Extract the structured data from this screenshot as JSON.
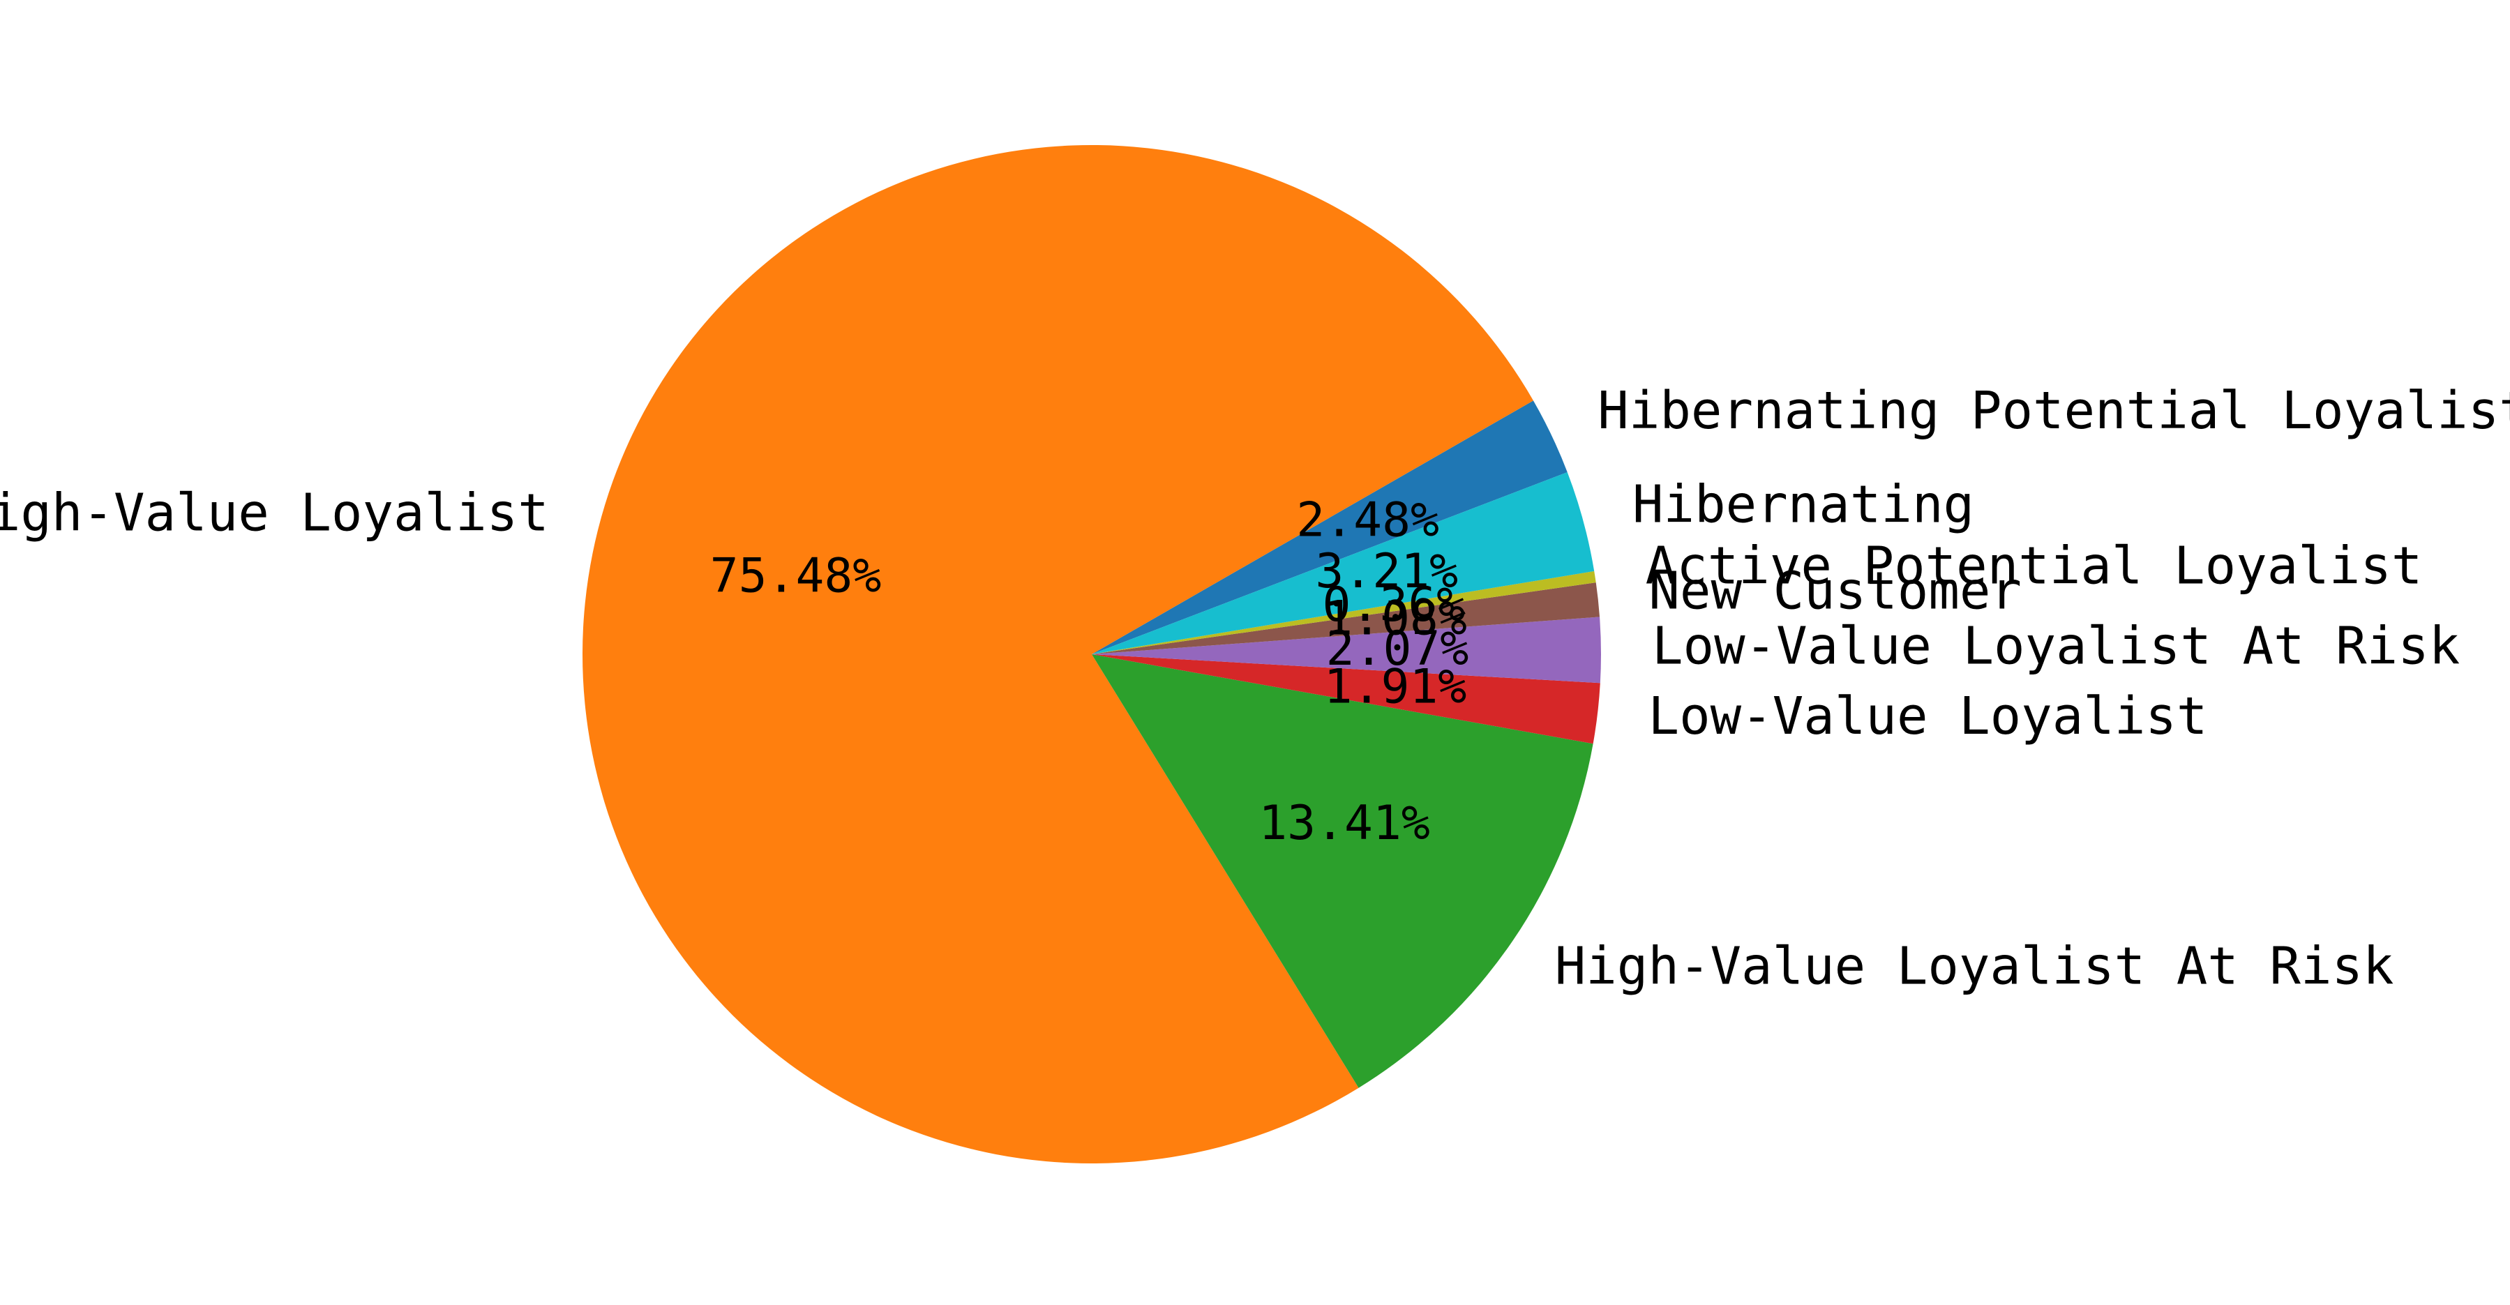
{
  "chart_data": {
    "type": "pie",
    "title": "",
    "start_angle": 20.95,
    "direction": "counterclockwise",
    "slices": [
      {
        "label": "Hibernating Potential Loyalist",
        "value": 2.48,
        "pct_label": "2.48%",
        "color": "#1f77b4"
      },
      {
        "label": "High-Value Loyalist",
        "value": 75.48,
        "pct_label": "75.48%",
        "color": "#ff7f0e"
      },
      {
        "label": "High-Value Loyalist At Risk",
        "value": 13.41,
        "pct_label": "13.41%",
        "color": "#2ca02c"
      },
      {
        "label": "Low-Value Loyalist",
        "value": 1.91,
        "pct_label": "1.91%",
        "color": "#d62728"
      },
      {
        "label": "Low-Value Loyalist At Risk",
        "value": 2.07,
        "pct_label": "2.07%",
        "color": "#9467bd"
      },
      {
        "label": "New Customer",
        "value": 1.08,
        "pct_label": "1.08%",
        "color": "#8c564b"
      },
      {
        "label": "Active Potential Loyalist",
        "value": 0.36,
        "pct_label": "0.36%",
        "color": "#bcbd22"
      },
      {
        "label": "Hibernating",
        "value": 3.21,
        "pct_label": "3.21%",
        "color": "#17becf"
      }
    ]
  }
}
